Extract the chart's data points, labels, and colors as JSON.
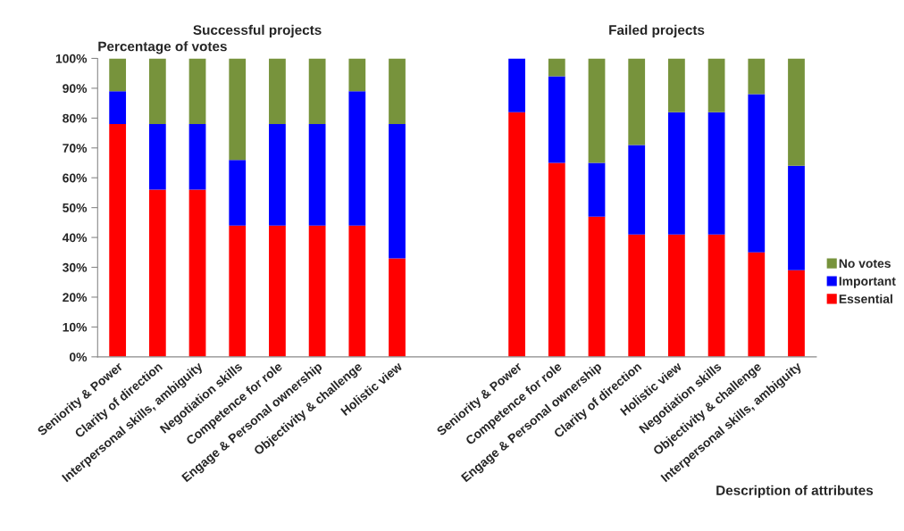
{
  "chart_data": {
    "type": "bar",
    "stacked": true,
    "ylabel": "Percentage of votes",
    "xlabel": "Description of attributes",
    "annotations": [
      "Successful projects",
      "Failed projects"
    ],
    "categories": [
      "Seniority & Power",
      "Clarity of direction",
      "Interpersonal skills, ambiguity",
      "Negotiation skills",
      "Competence for role",
      "Engage & Personal ownership",
      "Objectivity & challenge",
      "Holistic view",
      null,
      null,
      "Seniority & Power",
      "Competence for role",
      "Engage & Personal ownership",
      "Clarity of direction",
      "Holistic view",
      "Negotiation skills",
      "Objectivity & challenge",
      "Interpersonal skills, ambiguity"
    ],
    "series": [
      {
        "name": "Essential",
        "color": "#ff0000",
        "values": [
          78,
          56,
          56,
          44,
          44,
          44,
          44,
          33,
          null,
          null,
          82,
          65,
          47,
          41,
          41,
          41,
          35,
          29
        ]
      },
      {
        "name": "Important",
        "color": "#0000ff",
        "values": [
          11,
          22,
          22,
          22,
          34,
          34,
          45,
          45,
          null,
          null,
          18,
          29,
          18,
          30,
          41,
          41,
          53,
          35
        ]
      },
      {
        "name": "No votes",
        "color": "#77933c",
        "values": [
          11,
          22,
          22,
          34,
          22,
          22,
          11,
          22,
          null,
          null,
          null,
          6,
          35,
          29,
          18,
          18,
          12,
          36
        ]
      }
    ],
    "ylim": [
      0,
      100
    ],
    "yticks": [
      {
        "value": 0,
        "label": "0%"
      },
      {
        "value": 10,
        "label": "10%"
      },
      {
        "value": 20,
        "label": "20%"
      },
      {
        "value": 30,
        "label": "30%"
      },
      {
        "value": 40,
        "label": "40%"
      },
      {
        "value": 50,
        "label": "50%"
      },
      {
        "value": 60,
        "label": "60%"
      },
      {
        "value": 70,
        "label": "70%"
      },
      {
        "value": 80,
        "label": "80%"
      },
      {
        "value": 90,
        "label": "90%"
      },
      {
        "value": 100,
        "label": "100%"
      }
    ],
    "grid": false,
    "legend": "right"
  }
}
